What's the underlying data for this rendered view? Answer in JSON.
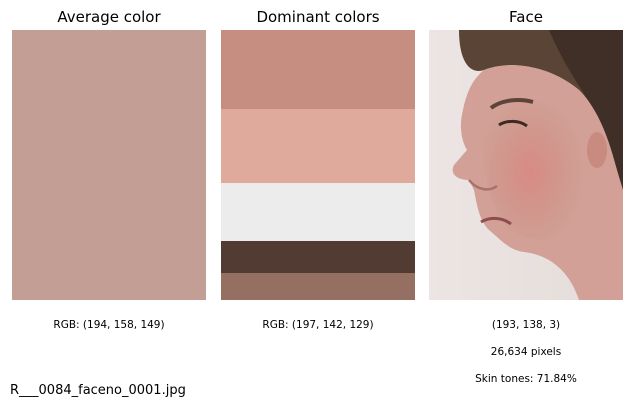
{
  "panels": {
    "average": {
      "title": "Average color",
      "swatch_color": "#c29e95",
      "caption": "RGB: (194, 158, 149)"
    },
    "dominant": {
      "title": "Dominant colors",
      "bands": [
        {
          "color": "#c58e81",
          "share": 0.293
        },
        {
          "color": "#dfa99b",
          "share": 0.274
        },
        {
          "color": "#ececec",
          "share": 0.215
        },
        {
          "color": "#513b33",
          "share": 0.119
        },
        {
          "color": "#956f62",
          "share": 0.099
        }
      ],
      "caption": "RGB: (197, 142, 129)"
    },
    "face": {
      "title": "Face",
      "caption_color": "(193, 138, 3)",
      "caption_pixels": "26,634 pixels",
      "caption_skin": "Skin tones: 71.84%"
    }
  },
  "filename": "R___0084_faceno_0001.jpg"
}
